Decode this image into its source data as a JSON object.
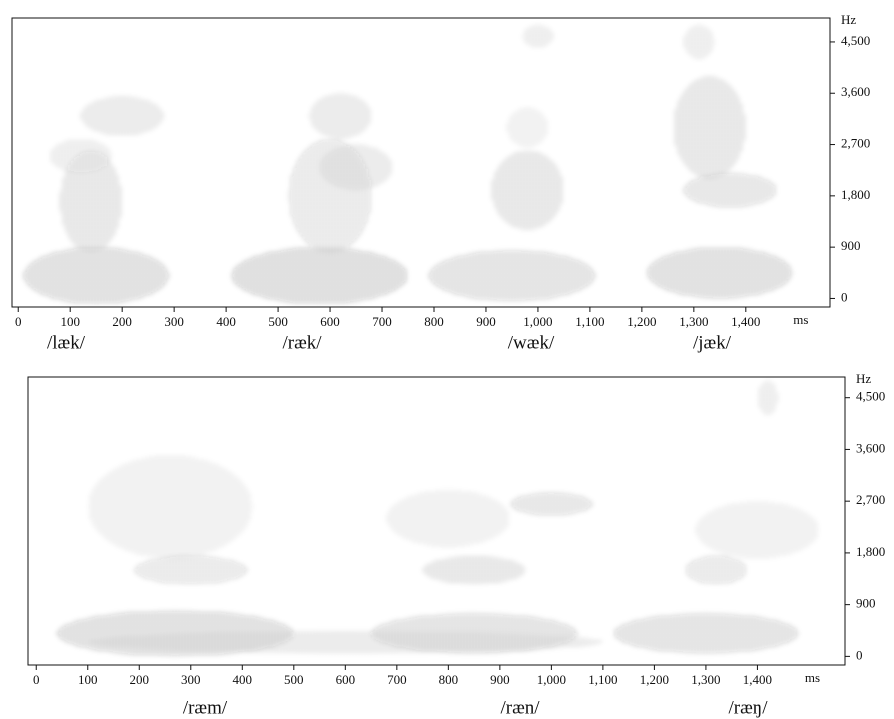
{
  "chart_data": [
    {
      "type": "spectrogram",
      "x_unit": "ms",
      "y_unit": "Hz",
      "xlim": [
        -12,
        1562
      ],
      "ylim": [
        -150,
        4920
      ],
      "xticks": [
        0,
        100,
        200,
        300,
        400,
        500,
        600,
        700,
        800,
        900,
        {
          "value": 1000,
          "label": "1,000"
        },
        {
          "value": 1100,
          "label": "1,100"
        },
        {
          "value": 1200,
          "label": "1,200"
        },
        {
          "value": 1300,
          "label": "1,300"
        },
        {
          "value": 1400,
          "label": "1,400"
        }
      ],
      "yticks": [
        0,
        900,
        {
          "value": 1800,
          "label": "1,800"
        },
        {
          "value": 2700,
          "label": "2,700"
        },
        {
          "value": 3600,
          "label": "3,600"
        },
        {
          "value": 4500,
          "label": "4,500"
        }
      ],
      "annotations": [
        "/læk/",
        "/ræk/",
        "/wæk/",
        "/jæk/"
      ]
    },
    {
      "type": "spectrogram",
      "x_unit": "ms",
      "y_unit": "Hz",
      "xlim": [
        -16,
        1570
      ],
      "ylim": [
        -150,
        4860
      ],
      "xticks": [
        0,
        100,
        200,
        300,
        400,
        500,
        600,
        700,
        800,
        900,
        {
          "value": 1000,
          "label": "1,000"
        },
        {
          "value": 1100,
          "label": "1,100"
        },
        {
          "value": 1200,
          "label": "1,200"
        },
        {
          "value": 1300,
          "label": "1,300"
        },
        {
          "value": 1400,
          "label": "1,400"
        }
      ],
      "yticks": [
        0,
        900,
        {
          "value": 1800,
          "label": "1,800"
        },
        {
          "value": 2700,
          "label": "2,700"
        },
        {
          "value": 3600,
          "label": "3,600"
        },
        {
          "value": 4500,
          "label": "4,500"
        }
      ],
      "annotations": [
        "/ræm/",
        "/ræn/",
        "/ræŋ/"
      ]
    }
  ]
}
